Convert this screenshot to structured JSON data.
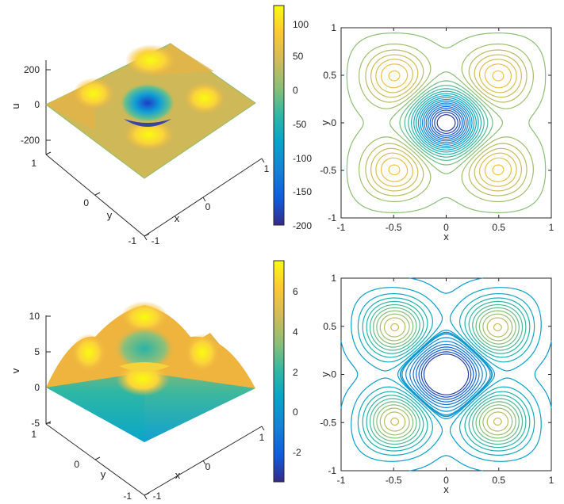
{
  "chart_data": [
    {
      "type": "surface",
      "zlabel": "u",
      "xlabel": "x",
      "ylabel": "y",
      "xlim": [
        -1,
        1
      ],
      "ylim": [
        -1,
        1
      ],
      "zlim": [
        -200,
        200
      ],
      "xticks": [
        "-1",
        "0",
        "1"
      ],
      "yticks": [
        "-1",
        "0",
        "1"
      ],
      "zticks": [
        "200",
        "0",
        "-200"
      ],
      "center_min": -200,
      "bump_max": 120,
      "colorbar": {
        "ticks": [
          "100",
          "50",
          "0",
          "-50",
          "-100",
          "-150",
          "-200"
        ],
        "min": -200,
        "max": 122
      }
    },
    {
      "type": "contour",
      "xlabel": "x",
      "ylabel": "y",
      "xlim": [
        -1,
        1
      ],
      "ylim": [
        -1,
        1
      ],
      "xticks": [
        "-1",
        "-0.5",
        "0",
        "0.5",
        "1"
      ],
      "yticks": [
        "1",
        "0.5",
        "0",
        "-0.5",
        "-1"
      ],
      "colorbar_min": -200,
      "colorbar_max": 122
    },
    {
      "type": "surface",
      "zlabel": "v",
      "xlabel": "x",
      "ylabel": "y",
      "xlim": [
        -1,
        1
      ],
      "ylim": [
        -1,
        1
      ],
      "zlim": [
        -5,
        10
      ],
      "xticks": [
        "-1",
        "0",
        "1"
      ],
      "yticks": [
        "-1",
        "0",
        "1"
      ],
      "zticks": [
        "10",
        "5",
        "0",
        "-5"
      ],
      "center_value": 2.5,
      "bump_max": 7.2,
      "colorbar": {
        "ticks": [
          "6",
          "4",
          "2",
          "0",
          "-2"
        ],
        "min": -3.5,
        "max": 7.5
      }
    },
    {
      "type": "contour",
      "xlabel": "x",
      "ylabel": "y",
      "xlim": [
        -1,
        1
      ],
      "ylim": [
        -1,
        1
      ],
      "xticks": [
        "-1",
        "-0.5",
        "0",
        "0.5",
        "1"
      ],
      "yticks": [
        "1",
        "0.5",
        "0",
        "-0.5",
        "-1"
      ],
      "colorbar_min": -3.5,
      "colorbar_max": 7.5
    }
  ]
}
